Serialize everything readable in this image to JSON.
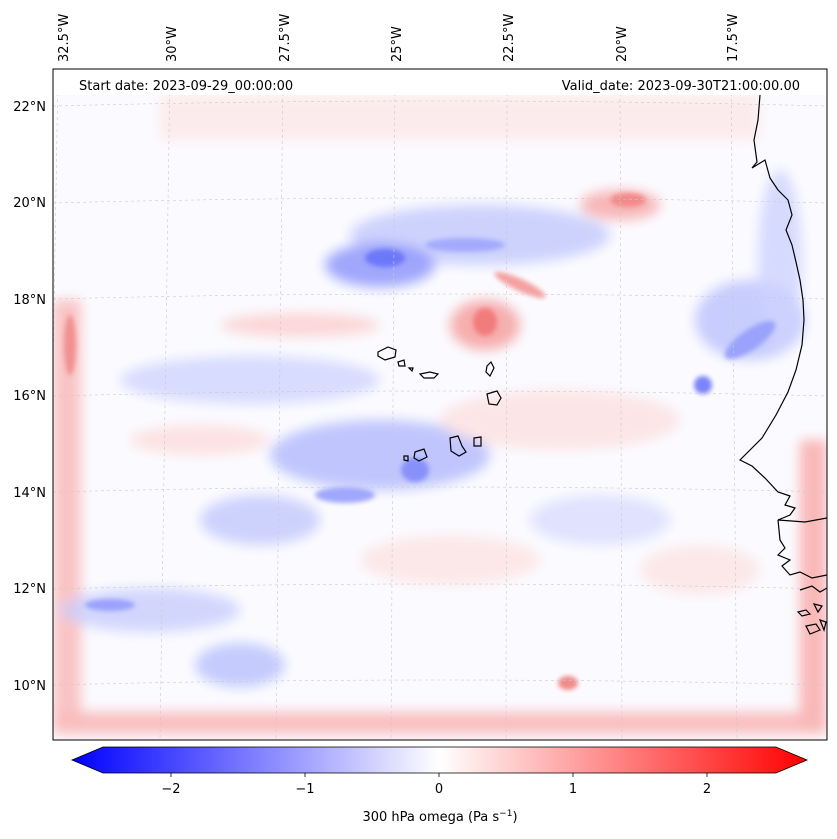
{
  "map": {
    "start_label": "Start date: 2023-09-29_00:00:00",
    "valid_label": "Valid_date: 2023-09-30T21:00:00.00",
    "lon_ticks": [
      "32.5°W",
      "30°W",
      "27.5°W",
      "25°W",
      "22.5°W",
      "20°W",
      "17.5°W"
    ],
    "lat_ticks": [
      "22°N",
      "20°N",
      "18°N",
      "16°N",
      "14°N",
      "12°N",
      "10°N"
    ]
  },
  "colorbar": {
    "ticks": [
      "−2",
      "−1",
      "0",
      "1",
      "2"
    ],
    "label": "300 hPa omega (Pa s",
    "label_sup": "−1",
    "label_end": ")",
    "min": -2.5,
    "max": 2.5,
    "colors": {
      "negative": "#0000ff",
      "zero": "#ffffff",
      "positive": "#ff0000"
    }
  },
  "chart_data": {
    "type": "heatmap",
    "variable": "300 hPa omega",
    "units": "Pa s^-1",
    "lon_range": [
      "33°W",
      "15.5°W"
    ],
    "lat_range": [
      "9°N",
      "22.8°N"
    ],
    "colorscale": "bwr",
    "vmin": -2.5,
    "vmax": 2.5,
    "gridlines": true
  }
}
